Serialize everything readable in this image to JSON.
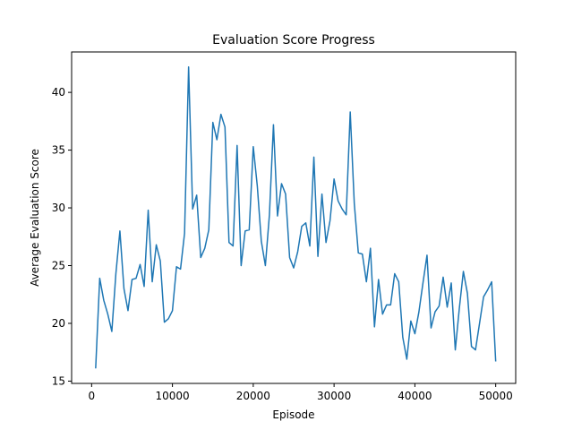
{
  "chart_data": {
    "type": "line",
    "title": "Evaluation Score Progress",
    "xlabel": "Episode",
    "ylabel": "Average Evaluation Score",
    "xlim": [
      -2475,
      52475
    ],
    "ylim": [
      14.8,
      43.5
    ],
    "xticks": [
      0,
      10000,
      20000,
      30000,
      40000,
      50000
    ],
    "yticks": [
      15,
      20,
      25,
      30,
      35,
      40
    ],
    "grid": false,
    "line_color": "#1f77b4",
    "series": [
      {
        "x": [
          500,
          1000,
          1500,
          2000,
          2500,
          3000,
          3500,
          4000,
          4500,
          5000,
          5500,
          6000,
          6500,
          7000,
          7500,
          8000,
          8500,
          9000,
          9500,
          10000,
          10500,
          11000,
          11500,
          12000,
          12500,
          13000,
          13500,
          14000,
          14500,
          15000,
          15500,
          16000,
          16500,
          17000,
          17500,
          18000,
          18500,
          19000,
          19500,
          20000,
          20500,
          21000,
          21500,
          22000,
          22500,
          23000,
          23500,
          24000,
          24500,
          25000,
          25500,
          26000,
          26500,
          27000,
          27500,
          28000,
          28500,
          29000,
          29500,
          30000,
          30500,
          31000,
          31500,
          32000,
          32500,
          33000,
          33500,
          34000,
          34500,
          35000,
          35500,
          36000,
          36500,
          37000,
          37500,
          38000,
          38500,
          39000,
          39500,
          40000,
          40500,
          41000,
          41500,
          42000,
          42500,
          43000,
          43500,
          44000,
          44500,
          45000,
          45500,
          46000,
          46500,
          47000,
          47500,
          48000,
          48500,
          49000,
          49500,
          50000
        ],
        "values": [
          16.1,
          23.9,
          22.0,
          20.8,
          19.3,
          24.3,
          28.0,
          23.0,
          21.1,
          23.8,
          23.9,
          25.1,
          23.2,
          29.8,
          23.6,
          26.8,
          25.4,
          20.1,
          20.4,
          21.1,
          24.9,
          24.7,
          27.8,
          42.2,
          29.9,
          31.1,
          25.7,
          26.5,
          28.1,
          37.4,
          35.9,
          38.1,
          37.0,
          27.0,
          26.7,
          35.4,
          25.0,
          28.0,
          28.1,
          35.3,
          31.9,
          27.1,
          25.0,
          29.4,
          37.2,
          29.3,
          32.1,
          31.2,
          25.7,
          24.8,
          26.2,
          28.4,
          28.7,
          26.7,
          34.4,
          25.8,
          31.2,
          27.0,
          28.9,
          32.5,
          30.6,
          29.9,
          29.4,
          38.3,
          30.4,
          26.1,
          26.0,
          23.6,
          26.5,
          19.7,
          23.8,
          20.8,
          21.6,
          21.6,
          24.3,
          23.6,
          18.8,
          16.9,
          20.2,
          19.1,
          21.0,
          23.5,
          25.9,
          19.6,
          21.0,
          21.5,
          24.0,
          21.4,
          23.5,
          17.7,
          21.3,
          24.5,
          22.6,
          18.0,
          17.7,
          20.0,
          22.3,
          22.9,
          23.6,
          16.7
        ]
      }
    ]
  }
}
